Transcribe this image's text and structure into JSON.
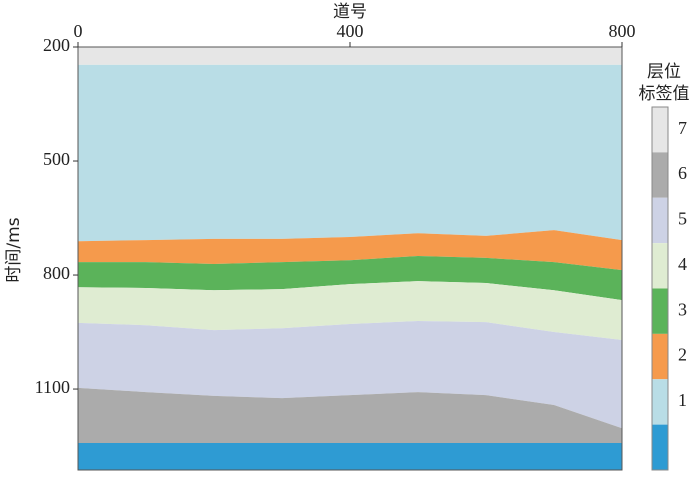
{
  "chart_data": {
    "type": "layers",
    "x_label": "道号",
    "y_label": "时间/ms",
    "colorbar_title": [
      "层位",
      "标签值"
    ],
    "x": [
      0,
      100,
      200,
      300,
      400,
      500,
      600,
      700,
      800
    ],
    "xlim": [
      0,
      800
    ],
    "xticks": [
      0,
      400,
      800
    ],
    "ylim": [
      200,
      1313
    ],
    "yticks": [
      200,
      500,
      800,
      1100
    ],
    "y_inverted": true,
    "series": [
      {
        "name": "7",
        "color": "#e6e6e6",
        "values": [
          200,
          200,
          200,
          200,
          200,
          200,
          200,
          200,
          200
        ]
      },
      {
        "name": "1",
        "color": "#b9dde6",
        "values": [
          247,
          247,
          247,
          247,
          247,
          247,
          247,
          247,
          247
        ]
      },
      {
        "name": "2",
        "color": "#f59a4c",
        "values": [
          711,
          708,
          705,
          705,
          700,
          690,
          697,
          682,
          708
        ]
      },
      {
        "name": "3",
        "color": "#5bb35a",
        "values": [
          766,
          766,
          771,
          766,
          761,
          750,
          755,
          766,
          787
        ]
      },
      {
        "name": "4",
        "color": "#dfecd2",
        "values": [
          832,
          834,
          840,
          837,
          824,
          816,
          821,
          840,
          866
        ]
      },
      {
        "name": "5",
        "color": "#cdd2e5",
        "values": [
          926,
          932,
          945,
          940,
          929,
          921,
          924,
          950,
          971
        ]
      },
      {
        "name": "6",
        "color": "#ababab",
        "values": [
          1097,
          1108,
          1118,
          1124,
          1116,
          1108,
          1116,
          1142,
          1203
        ]
      },
      {
        "name": null,
        "color": "#2e9bd3",
        "values": [
          1242,
          1242,
          1242,
          1242,
          1242,
          1242,
          1242,
          1242,
          1242
        ]
      }
    ]
  }
}
